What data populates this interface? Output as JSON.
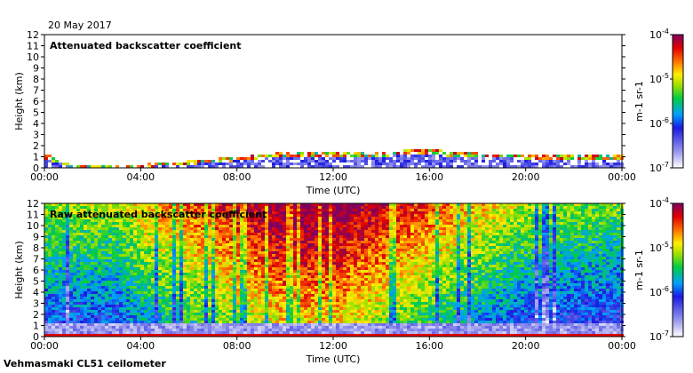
{
  "date": "20 May 2017",
  "footer": "Vehmasmaki CL51 ceilometer",
  "chart_data": [
    {
      "type": "heatmap",
      "title": "Attenuated backscatter coefficient",
      "xlabel": "Time (UTC)",
      "ylabel": "Height (km)",
      "x_ticks": [
        "00:00",
        "04:00",
        "08:00",
        "12:00",
        "16:00",
        "20:00",
        "00:00"
      ],
      "x_range_hours": [
        0,
        24
      ],
      "y_ticks": [
        0,
        1,
        2,
        3,
        4,
        5,
        6,
        7,
        8,
        9,
        10,
        11,
        12
      ],
      "ylim": [
        0,
        12
      ],
      "color_scale": "log",
      "colorbar_label": "m-1 sr-1",
      "colorbar_ticks": [
        "10-7",
        "10-6",
        "10-5",
        "10-4"
      ],
      "colorbar_range": [
        1e-07,
        0.0001
      ],
      "layer_top_km": [
        {
          "t": 0,
          "h": 1.1
        },
        {
          "t": 1,
          "h": 0.2
        },
        {
          "t": 4,
          "h": 0.2
        },
        {
          "t": 6,
          "h": 0.5
        },
        {
          "t": 8,
          "h": 0.9
        },
        {
          "t": 10,
          "h": 1.3
        },
        {
          "t": 12,
          "h": 1.4
        },
        {
          "t": 14,
          "h": 1.4
        },
        {
          "t": 16,
          "h": 1.5
        },
        {
          "t": 18,
          "h": 1.2
        },
        {
          "t": 20,
          "h": 1.1
        },
        {
          "t": 24,
          "h": 1.0
        }
      ]
    },
    {
      "type": "heatmap",
      "title": "Raw attenuated backscatter coefficient",
      "xlabel": "Time (UTC)",
      "ylabel": "Height (km)",
      "x_ticks": [
        "00:00",
        "04:00",
        "08:00",
        "12:00",
        "16:00",
        "20:00",
        "00:00"
      ],
      "x_range_hours": [
        0,
        24
      ],
      "y_ticks": [
        0,
        1,
        2,
        3,
        4,
        5,
        6,
        7,
        8,
        9,
        10,
        11,
        12
      ],
      "ylim": [
        0,
        12
      ],
      "color_scale": "log",
      "colorbar_label": "m-1 sr-1",
      "colorbar_ticks": [
        "10-7",
        "10-6",
        "10-5",
        "10-4"
      ],
      "colorbar_range": [
        1e-07,
        0.0001
      ],
      "signal_profile": [
        {
          "t": 0,
          "level": 0.45
        },
        {
          "t": 3,
          "level": 0.45
        },
        {
          "t": 4,
          "level": 0.55
        },
        {
          "t": 6,
          "level": 0.65
        },
        {
          "t": 8,
          "level": 0.75
        },
        {
          "t": 10,
          "level": 0.85
        },
        {
          "t": 12,
          "level": 0.85
        },
        {
          "t": 14,
          "level": 0.75
        },
        {
          "t": 16,
          "level": 0.65
        },
        {
          "t": 18,
          "level": 0.55
        },
        {
          "t": 20,
          "level": 0.45
        },
        {
          "t": 24,
          "level": 0.4
        }
      ]
    }
  ]
}
